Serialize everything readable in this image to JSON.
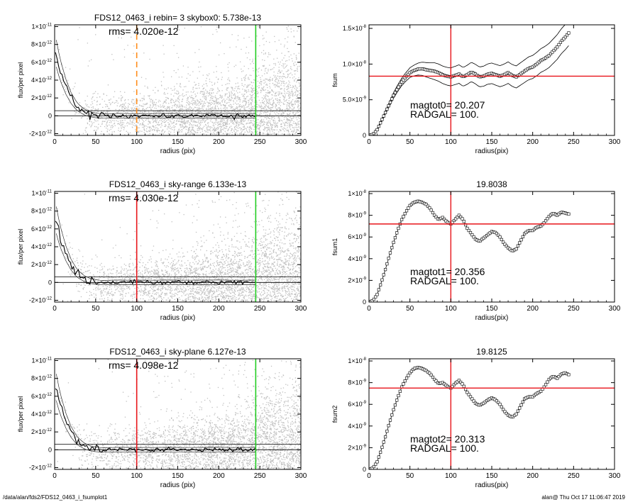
{
  "footer": {
    "path": "/data/alan/fds2/FDS12_0463_i_fsumplot1",
    "stamp": "alan@  Thu Oct 17 11:06:47 2019"
  },
  "colors": {
    "scatter": "#c0c0c0",
    "profile": "#000000",
    "sky_marker_orange": "#ff8c1a",
    "radgal_marker_red": "#e8141a",
    "edge_marker_green": "#22cc22",
    "hline_red": "#e8141a"
  },
  "chart_data": [
    {
      "id": "flux0",
      "type": "scatter",
      "title": "FDS12_0463_i rebin= 3    skybox0:  5.738e-13",
      "annotation": "rms= 4.020e-12",
      "xlabel": "radius (pix)",
      "ylabel": "flux/per pixel",
      "xlim": [
        0,
        300
      ],
      "ylim": [
        -2.2e-12,
        1.02e-11
      ],
      "xticks": [
        0,
        50,
        100,
        150,
        200,
        250,
        300
      ],
      "yticks": [
        {
          "v": 1e-11,
          "m": "1×10",
          "e": "-11"
        },
        {
          "v": 8e-12,
          "m": "8×10",
          "e": "-12"
        },
        {
          "v": 6e-12,
          "m": "6×10",
          "e": "-12"
        },
        {
          "v": 4e-12,
          "m": "4×10",
          "e": "-12"
        },
        {
          "v": 2e-12,
          "m": "2×10",
          "e": "-12"
        },
        {
          "v": 0,
          "m": "0",
          "e": ""
        },
        {
          "v": -2e-12,
          "m": "-2×10",
          "e": "-12"
        }
      ],
      "vlines": [
        {
          "x": 100,
          "color": "#ff8c1a",
          "dashed": true
        },
        {
          "x": 245,
          "color": "#22cc22",
          "dashed": false
        }
      ],
      "hlines": [
        5.7e-13,
        0
      ],
      "profile": {
        "x": [
          2,
          5,
          8,
          11,
          14,
          17,
          20,
          23,
          26,
          29,
          32,
          35,
          38,
          41,
          44,
          47,
          50,
          55,
          60,
          70,
          80,
          90,
          100,
          120,
          140,
          160,
          180,
          200,
          220,
          245
        ],
        "y": [
          7e-12,
          5.8e-12,
          4.8e-12,
          4e-12,
          3.2e-12,
          2.6e-12,
          2e-12,
          1.6e-12,
          1.2e-12,
          9e-13,
          7e-13,
          5e-13,
          3.5e-13,
          2.5e-13,
          1.5e-13,
          1e-13,
          5e-14,
          0,
          -2e-14,
          0,
          2e-14,
          0,
          1e-14,
          0,
          2e-14,
          0,
          1e-14,
          2e-14,
          0,
          1e-14
        ]
      }
    },
    {
      "id": "flux1",
      "type": "scatter",
      "title": "FDS12_0463_i sky-range  6.133e-13",
      "annotation": "rms= 4.030e-12",
      "xlabel": "radius (pix)",
      "ylabel": "flux/per pixel",
      "xlim": [
        0,
        300
      ],
      "ylim": [
        -2.2e-12,
        1.02e-11
      ],
      "xticks": [
        0,
        50,
        100,
        150,
        200,
        250,
        300
      ],
      "yticks": [
        {
          "v": 1e-11,
          "m": "1×10",
          "e": "-11"
        },
        {
          "v": 8e-12,
          "m": "8×10",
          "e": "-12"
        },
        {
          "v": 6e-12,
          "m": "6×10",
          "e": "-12"
        },
        {
          "v": 4e-12,
          "m": "4×10",
          "e": "-12"
        },
        {
          "v": 2e-12,
          "m": "2×10",
          "e": "-12"
        },
        {
          "v": 0,
          "m": "0",
          "e": ""
        },
        {
          "v": -2e-12,
          "m": "-2×10",
          "e": "-12"
        }
      ],
      "vlines": [
        {
          "x": 100,
          "color": "#e8141a",
          "dashed": false
        },
        {
          "x": 245,
          "color": "#22cc22",
          "dashed": false
        }
      ],
      "hlines": [
        6.1e-13,
        0
      ],
      "profile": {
        "x": [
          2,
          5,
          8,
          11,
          14,
          17,
          20,
          23,
          26,
          29,
          32,
          35,
          38,
          41,
          44,
          47,
          50,
          55,
          60,
          70,
          80,
          90,
          100,
          120,
          140,
          160,
          180,
          200,
          220,
          245
        ],
        "y": [
          7e-12,
          5.8e-12,
          4.8e-12,
          4e-12,
          3.2e-12,
          2.6e-12,
          2e-12,
          1.6e-12,
          1.2e-12,
          9e-13,
          7e-13,
          5e-13,
          3.5e-13,
          2.5e-13,
          1.5e-13,
          1e-13,
          5e-14,
          0,
          -2e-14,
          0,
          2e-14,
          0,
          1e-14,
          0,
          2e-14,
          0,
          1e-14,
          2e-14,
          0,
          1e-14
        ]
      }
    },
    {
      "id": "flux2",
      "type": "scatter",
      "title": "FDS12_0463_i sky-plane  6.127e-13",
      "annotation": "rms= 4.098e-12",
      "xlabel": "radius (pix)",
      "ylabel": "flux/per pixel",
      "xlim": [
        0,
        300
      ],
      "ylim": [
        -2.2e-12,
        1.02e-11
      ],
      "xticks": [
        0,
        50,
        100,
        150,
        200,
        250,
        300
      ],
      "yticks": [
        {
          "v": 1e-11,
          "m": "1×10",
          "e": "-11"
        },
        {
          "v": 8e-12,
          "m": "8×10",
          "e": "-12"
        },
        {
          "v": 6e-12,
          "m": "6×10",
          "e": "-12"
        },
        {
          "v": 4e-12,
          "m": "4×10",
          "e": "-12"
        },
        {
          "v": 2e-12,
          "m": "2×10",
          "e": "-12"
        },
        {
          "v": 0,
          "m": "0",
          "e": ""
        },
        {
          "v": -2e-12,
          "m": "-2×10",
          "e": "-12"
        }
      ],
      "vlines": [
        {
          "x": 100,
          "color": "#e8141a",
          "dashed": false
        },
        {
          "x": 245,
          "color": "#22cc22",
          "dashed": false
        }
      ],
      "hlines": [
        6.1e-13,
        0
      ],
      "profile": {
        "x": [
          2,
          5,
          8,
          11,
          14,
          17,
          20,
          23,
          26,
          29,
          32,
          35,
          38,
          41,
          44,
          47,
          50,
          55,
          60,
          70,
          80,
          90,
          100,
          120,
          140,
          160,
          180,
          200,
          220,
          245
        ],
        "y": [
          7e-12,
          5.8e-12,
          4.8e-12,
          4e-12,
          3.2e-12,
          2.6e-12,
          2e-12,
          1.6e-12,
          1.2e-12,
          9e-13,
          7e-13,
          5e-13,
          3.5e-13,
          2.5e-13,
          1.5e-13,
          1e-13,
          5e-14,
          0,
          -2e-14,
          0,
          2e-14,
          0,
          1e-14,
          0,
          2e-14,
          0,
          1e-14,
          2e-14,
          0,
          1e-14
        ]
      }
    },
    {
      "id": "fsum0",
      "type": "line",
      "title": "",
      "xlabel": "radius(pix)",
      "ylabel": "fsum",
      "xlim": [
        0,
        300
      ],
      "ylim": [
        0,
        1.55e-08
      ],
      "xticks": [
        0,
        50,
        100,
        150,
        200,
        250,
        300
      ],
      "yticks": [
        {
          "v": 1.5e-08,
          "m": "1.5×10",
          "e": "-8"
        },
        {
          "v": 1e-08,
          "m": "1.0×10",
          "e": "-8"
        },
        {
          "v": 5e-09,
          "m": "5.0×10",
          "e": "-9"
        },
        {
          "v": 0,
          "m": "0",
          "e": ""
        }
      ],
      "vline": 100,
      "hline": 8.3e-09,
      "mag_label": "magtot0= ",
      "mag_value": "20.207",
      "radgal_label": "RADGAL=",
      "radgal_value": "100.",
      "curve": {
        "x": [
          0,
          5,
          10,
          15,
          20,
          25,
          30,
          35,
          40,
          45,
          50,
          55,
          60,
          65,
          70,
          75,
          80,
          85,
          90,
          95,
          100,
          105,
          110,
          115,
          120,
          125,
          130,
          135,
          140,
          145,
          150,
          155,
          160,
          165,
          170,
          175,
          180,
          185,
          190,
          195,
          200,
          205,
          210,
          215,
          220,
          225,
          230,
          235,
          240,
          245
        ],
        "y": [
          0,
          1.5e-10,
          8e-10,
          2e-09,
          3.2e-09,
          4.4e-09,
          5.6e-09,
          6.6e-09,
          7.5e-09,
          8.2e-09,
          8.8e-09,
          9.1e-09,
          9.3e-09,
          9.35e-09,
          9.2e-09,
          9.1e-09,
          9e-09,
          8.8e-09,
          8.5e-09,
          8.3e-09,
          8.2e-09,
          8.4e-09,
          8.6e-09,
          8.2e-09,
          8.5e-09,
          8.9e-09,
          8.6e-09,
          8.2e-09,
          8.3e-09,
          8.6e-09,
          8.7e-09,
          8.5e-09,
          8.3e-09,
          8.5e-09,
          8.8e-09,
          8.4e-09,
          8.2e-09,
          8.6e-09,
          9e-09,
          9.4e-09,
          9.6e-09,
          1e-08,
          1.05e-08,
          1.08e-08,
          1.12e-08,
          1.18e-08,
          1.24e-08,
          1.32e-08,
          1.38e-08,
          1.45e-08
        ]
      },
      "band": 9e-10
    },
    {
      "id": "fsum1",
      "type": "scatter",
      "title": "19.8038",
      "xlabel": "radius(pix)",
      "ylabel": "fsum1",
      "xlim": [
        0,
        300
      ],
      "ylim": [
        0,
        1.02e-08
      ],
      "xticks": [
        0,
        50,
        100,
        150,
        200,
        250,
        300
      ],
      "yticks": [
        {
          "v": 1e-08,
          "m": "1×10",
          "e": "-8"
        },
        {
          "v": 8e-09,
          "m": "8×10",
          "e": "-9"
        },
        {
          "v": 6e-09,
          "m": "6×10",
          "e": "-9"
        },
        {
          "v": 4e-09,
          "m": "4×10",
          "e": "-9"
        },
        {
          "v": 2e-09,
          "m": "2×10",
          "e": "-9"
        },
        {
          "v": 0,
          "m": "0",
          "e": ""
        }
      ],
      "vline": 100,
      "hline": 7.2e-09,
      "mag_label": "magtot1= ",
      "mag_value": "20.356",
      "radgal_label": "RADGAL=",
      "radgal_value": "100.",
      "curve": {
        "x": [
          0,
          5,
          10,
          15,
          20,
          25,
          30,
          35,
          40,
          45,
          50,
          55,
          60,
          65,
          70,
          75,
          80,
          85,
          90,
          95,
          100,
          105,
          110,
          115,
          120,
          125,
          130,
          135,
          140,
          145,
          150,
          155,
          160,
          165,
          170,
          175,
          180,
          185,
          190,
          195,
          200,
          205,
          210,
          215,
          220,
          225,
          230,
          235,
          240,
          245
        ],
        "y": [
          0,
          1.5e-10,
          7e-10,
          1.8e-09,
          3e-09,
          4.3e-09,
          5.5e-09,
          6.6e-09,
          7.6e-09,
          8.3e-09,
          8.9e-09,
          9.2e-09,
          9.3e-09,
          9.2e-09,
          9e-09,
          8.6e-09,
          8e-09,
          7.6e-09,
          7.8e-09,
          7.4e-09,
          7.2e-09,
          7.6e-09,
          8e-09,
          7.6e-09,
          6.8e-09,
          6.3e-09,
          5.8e-09,
          5.6e-09,
          5.9e-09,
          6.2e-09,
          6.5e-09,
          6.4e-09,
          6e-09,
          5.4e-09,
          5e-09,
          4.7e-09,
          4.9e-09,
          5.6e-09,
          6.3e-09,
          6.6e-09,
          6.6e-09,
          6.9e-09,
          7e-09,
          7.4e-09,
          7.9e-09,
          8.2e-09,
          8e-09,
          8.3e-09,
          8.2e-09,
          8.1e-09
        ]
      }
    },
    {
      "id": "fsum2",
      "type": "scatter",
      "title": "19.8125",
      "xlabel": "radius(pix)",
      "ylabel": "fsum2",
      "xlim": [
        0,
        300
      ],
      "ylim": [
        0,
        1.02e-08
      ],
      "xticks": [
        0,
        50,
        100,
        150,
        200,
        250,
        300
      ],
      "yticks": [
        {
          "v": 1e-08,
          "m": "1×10",
          "e": "-8"
        },
        {
          "v": 8e-09,
          "m": "8×10",
          "e": "-9"
        },
        {
          "v": 6e-09,
          "m": "6×10",
          "e": "-9"
        },
        {
          "v": 4e-09,
          "m": "4×10",
          "e": "-9"
        },
        {
          "v": 2e-09,
          "m": "2×10",
          "e": "-9"
        },
        {
          "v": 0,
          "m": "0",
          "e": ""
        }
      ],
      "vline": 100,
      "hline": 7.5e-09,
      "mag_label": "magtot2= ",
      "mag_value": "20.313",
      "radgal_label": "RADGAL=",
      "radgal_value": "100.",
      "curve": {
        "x": [
          0,
          5,
          10,
          15,
          20,
          25,
          30,
          35,
          40,
          45,
          50,
          55,
          60,
          65,
          70,
          75,
          80,
          85,
          90,
          95,
          100,
          105,
          110,
          115,
          120,
          125,
          130,
          135,
          140,
          145,
          150,
          155,
          160,
          165,
          170,
          175,
          180,
          185,
          190,
          195,
          200,
          205,
          210,
          215,
          220,
          225,
          230,
          235,
          240,
          245
        ],
        "y": [
          0,
          1.5e-10,
          7e-10,
          1.8e-09,
          3e-09,
          4.3e-09,
          5.5e-09,
          6.6e-09,
          7.6e-09,
          8.3e-09,
          8.9e-09,
          9.3e-09,
          9.4e-09,
          9.3e-09,
          9.1e-09,
          8.8e-09,
          8.3e-09,
          7.9e-09,
          8e-09,
          7.7e-09,
          7.5e-09,
          7.9e-09,
          8.2e-09,
          7.8e-09,
          7.1e-09,
          6.6e-09,
          6.1e-09,
          5.9e-09,
          6.1e-09,
          6.4e-09,
          6.6e-09,
          6.4e-09,
          6e-09,
          5.4e-09,
          5e-09,
          4.8e-09,
          5.1e-09,
          5.8e-09,
          6.5e-09,
          6.7e-09,
          6.7e-09,
          7e-09,
          7.2e-09,
          7.7e-09,
          8.3e-09,
          8.6e-09,
          8.4e-09,
          8.8e-09,
          8.9e-09,
          8.7e-09
        ]
      }
    }
  ]
}
